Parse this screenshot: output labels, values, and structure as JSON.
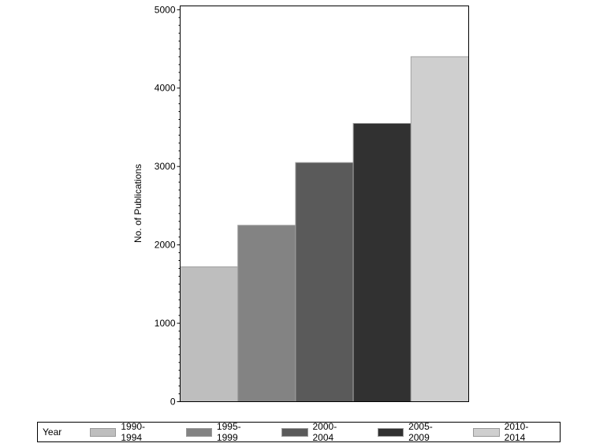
{
  "chart_data": {
    "type": "bar",
    "title": "",
    "xlabel": "",
    "ylabel": "No. of Publications",
    "ylim": [
      0,
      5000
    ],
    "yticks": [
      0,
      1000,
      2000,
      3000,
      4000,
      5000
    ],
    "categories": [
      "1990-1994",
      "1995-1999",
      "2000-2004",
      "2005-2009",
      "2010-2014"
    ],
    "values": [
      1720,
      2250,
      3050,
      3550,
      4400
    ],
    "colors": [
      "#bebebe",
      "#838383",
      "#5a5a5a",
      "#313131",
      "#cfcfcf"
    ],
    "legend": {
      "title": "Year",
      "placement": "bottom"
    }
  }
}
